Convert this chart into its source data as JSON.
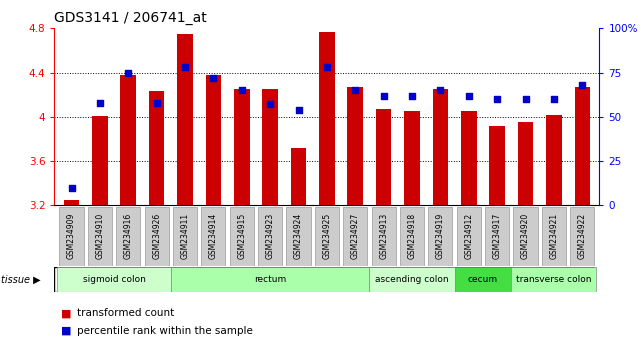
{
  "title": "GDS3141 / 206741_at",
  "samples": [
    "GSM234909",
    "GSM234910",
    "GSM234916",
    "GSM234926",
    "GSM234911",
    "GSM234914",
    "GSM234915",
    "GSM234923",
    "GSM234924",
    "GSM234925",
    "GSM234927",
    "GSM234913",
    "GSM234918",
    "GSM234919",
    "GSM234912",
    "GSM234917",
    "GSM234920",
    "GSM234921",
    "GSM234922"
  ],
  "bar_values": [
    3.25,
    4.01,
    4.38,
    4.23,
    4.75,
    4.38,
    4.25,
    4.25,
    3.72,
    4.77,
    4.27,
    4.07,
    4.05,
    4.25,
    4.05,
    3.92,
    3.95,
    4.02,
    4.27
  ],
  "dot_values": [
    10,
    58,
    75,
    58,
    78,
    72,
    65,
    57,
    54,
    78,
    65,
    62,
    62,
    65,
    62,
    60,
    60,
    60,
    68
  ],
  "bar_color": "#cc0000",
  "dot_color": "#0000cc",
  "ylim_left": [
    3.2,
    4.8
  ],
  "ylim_right": [
    0,
    100
  ],
  "yticks_left": [
    3.2,
    3.6,
    4.0,
    4.4,
    4.8
  ],
  "ytick_labels_left": [
    "3.2",
    "3.6",
    "4",
    "4.4",
    "4.8"
  ],
  "yticks_right": [
    0,
    25,
    50,
    75,
    100
  ],
  "ytick_labels_right": [
    "0",
    "25",
    "50",
    "75",
    "100%"
  ],
  "hlines": [
    3.6,
    4.0,
    4.4
  ],
  "tissue_groups": [
    {
      "label": "sigmoid colon",
      "start": 0,
      "end": 4,
      "color": "#ccffcc"
    },
    {
      "label": "rectum",
      "start": 4,
      "end": 11,
      "color": "#aaffaa"
    },
    {
      "label": "ascending colon",
      "start": 11,
      "end": 14,
      "color": "#ccffcc"
    },
    {
      "label": "cecum",
      "start": 14,
      "end": 16,
      "color": "#44dd44"
    },
    {
      "label": "transverse colon",
      "start": 16,
      "end": 19,
      "color": "#aaffaa"
    }
  ],
  "legend_bar": "transformed count",
  "legend_dot": "percentile rank within the sample",
  "background_color": "#ffffff",
  "plot_bg_color": "#ffffff",
  "sample_box_color": "#cccccc",
  "sample_box_edge": "#999999"
}
